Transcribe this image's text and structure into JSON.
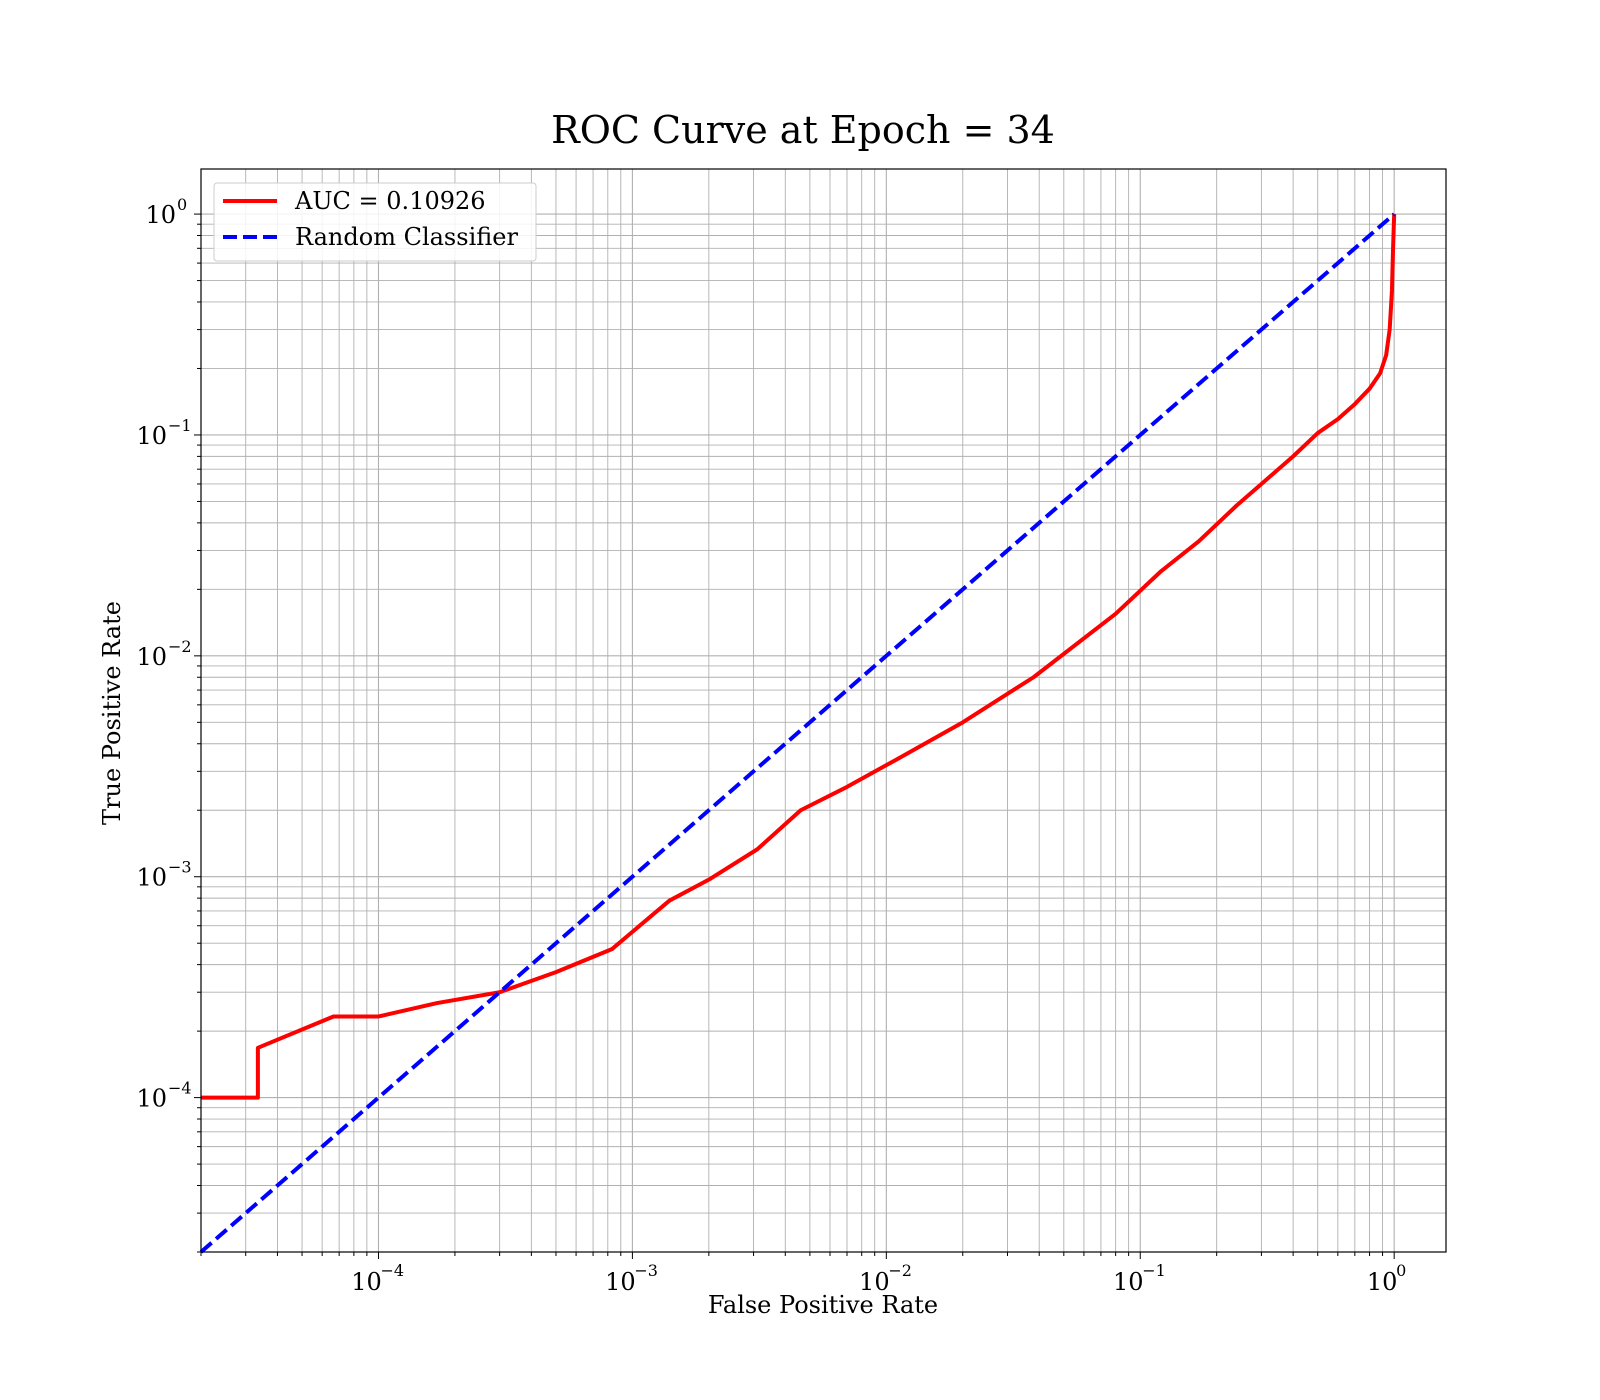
{
  "chart_data": {
    "type": "line",
    "title": "ROC Curve at Epoch = 34",
    "xlabel": "False Positive Rate",
    "ylabel": "True Positive Rate",
    "xscale": "log",
    "yscale": "log",
    "xlim": [
      2e-05,
      1.6
    ],
    "ylim": [
      2e-05,
      1.6
    ],
    "grid": true,
    "grid_which": "both",
    "legend_position": "upper-left",
    "x_ticks": [
      {
        "value": 0.0001,
        "base": "10",
        "exp": "−4"
      },
      {
        "value": 0.001,
        "base": "10",
        "exp": "−3"
      },
      {
        "value": 0.01,
        "base": "10",
        "exp": "−2"
      },
      {
        "value": 0.1,
        "base": "10",
        "exp": "−1"
      },
      {
        "value": 1,
        "base": "10",
        "exp": "0"
      }
    ],
    "y_ticks": [
      {
        "value": 0.0001,
        "base": "10",
        "exp": "−4"
      },
      {
        "value": 0.001,
        "base": "10",
        "exp": "−3"
      },
      {
        "value": 0.01,
        "base": "10",
        "exp": "−2"
      },
      {
        "value": 0.1,
        "base": "10",
        "exp": "−1"
      },
      {
        "value": 1,
        "base": "10",
        "exp": "0"
      }
    ],
    "series": [
      {
        "name": "AUC = 0.10926",
        "color": "#ff0000",
        "style": "solid",
        "points": [
          [
            2e-05,
            0.0001
          ],
          [
            3.35e-05,
            0.0001
          ],
          [
            3.35e-05,
            0.000168
          ],
          [
            6.65e-05,
            0.000233
          ],
          [
            0.0001,
            0.000233
          ],
          [
            0.00017,
            0.000268
          ],
          [
            0.0003,
            0.0003
          ],
          [
            0.0005,
            0.00037
          ],
          [
            0.00083,
            0.00047
          ],
          [
            0.0014,
            0.00078
          ],
          [
            0.002,
            0.00097
          ],
          [
            0.0031,
            0.00133
          ],
          [
            0.0046,
            0.002
          ],
          [
            0.007,
            0.00255
          ],
          [
            0.011,
            0.0034
          ],
          [
            0.02,
            0.005
          ],
          [
            0.038,
            0.008
          ],
          [
            0.08,
            0.0155
          ],
          [
            0.12,
            0.024
          ],
          [
            0.17,
            0.033
          ],
          [
            0.24,
            0.048
          ],
          [
            0.3,
            0.06
          ],
          [
            0.4,
            0.08
          ],
          [
            0.5,
            0.102
          ],
          [
            0.6,
            0.118
          ],
          [
            0.7,
            0.138
          ],
          [
            0.8,
            0.162
          ],
          [
            0.88,
            0.19
          ],
          [
            0.93,
            0.23
          ],
          [
            0.96,
            0.3
          ],
          [
            0.98,
            0.45
          ],
          [
            0.99,
            0.7
          ],
          [
            1.0,
            1.0
          ]
        ]
      },
      {
        "name": "Random Classifier",
        "color": "#0000ff",
        "style": "dashed",
        "points": [
          [
            2e-05,
            2e-05
          ],
          [
            1.0,
            1.0
          ]
        ]
      }
    ]
  }
}
